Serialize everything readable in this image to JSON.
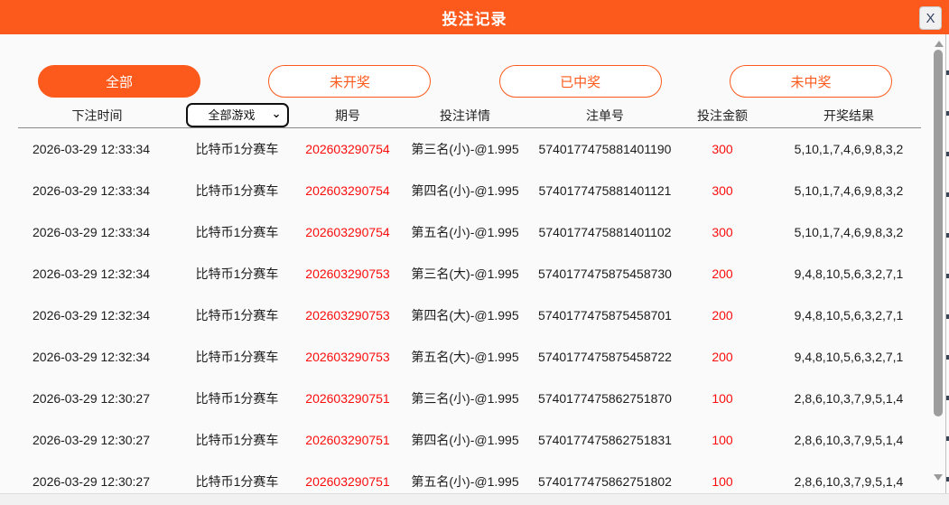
{
  "header": {
    "title": "投注记录",
    "close_label": "X"
  },
  "filters": [
    {
      "label": "全部",
      "active": true
    },
    {
      "label": "未开奖",
      "active": false
    },
    {
      "label": "已中奖",
      "active": false
    },
    {
      "label": "未中奖",
      "active": false
    }
  ],
  "table": {
    "headers": [
      "下注时间",
      "期号",
      "投注详情",
      "注单号",
      "投注金额",
      "开奖结果"
    ],
    "game_filter": {
      "selected": "全部游戏"
    },
    "rows": [
      {
        "time": "2026-03-29 12:33:34",
        "game": "比特币1分赛车",
        "period": "202603290754",
        "detail": "第三名(小)-@1.995",
        "order": "5740177475881401190",
        "amount": "300",
        "result": "5,10,1,7,4,6,9,8,3,2"
      },
      {
        "time": "2026-03-29 12:33:34",
        "game": "比特币1分赛车",
        "period": "202603290754",
        "detail": "第四名(小)-@1.995",
        "order": "5740177475881401121",
        "amount": "300",
        "result": "5,10,1,7,4,6,9,8,3,2"
      },
      {
        "time": "2026-03-29 12:33:34",
        "game": "比特币1分赛车",
        "period": "202603290754",
        "detail": "第五名(小)-@1.995",
        "order": "5740177475881401102",
        "amount": "300",
        "result": "5,10,1,7,4,6,9,8,3,2"
      },
      {
        "time": "2026-03-29 12:32:34",
        "game": "比特币1分赛车",
        "period": "202603290753",
        "detail": "第三名(大)-@1.995",
        "order": "5740177475875458730",
        "amount": "200",
        "result": "9,4,8,10,5,6,3,2,7,1"
      },
      {
        "time": "2026-03-29 12:32:34",
        "game": "比特币1分赛车",
        "period": "202603290753",
        "detail": "第四名(大)-@1.995",
        "order": "5740177475875458701",
        "amount": "200",
        "result": "9,4,8,10,5,6,3,2,7,1"
      },
      {
        "time": "2026-03-29 12:32:34",
        "game": "比特币1分赛车",
        "period": "202603290753",
        "detail": "第五名(大)-@1.995",
        "order": "5740177475875458722",
        "amount": "200",
        "result": "9,4,8,10,5,6,3,2,7,1"
      },
      {
        "time": "2026-03-29 12:30:27",
        "game": "比特币1分赛车",
        "period": "202603290751",
        "detail": "第三名(小)-@1.995",
        "order": "5740177475862751870",
        "amount": "100",
        "result": "2,8,6,10,3,7,9,5,1,4"
      },
      {
        "time": "2026-03-29 12:30:27",
        "game": "比特币1分赛车",
        "period": "202603290751",
        "detail": "第四名(小)-@1.995",
        "order": "5740177475862751831",
        "amount": "100",
        "result": "2,8,6,10,3,7,9,5,1,4"
      },
      {
        "time": "2026-03-29 12:30:27",
        "game": "比特币1分赛车",
        "period": "202603290751",
        "detail": "第五名(小)-@1.995",
        "order": "5740177475862751802",
        "amount": "100",
        "result": "2,8,6,10,3,7,9,5,1,4"
      }
    ]
  },
  "colors": {
    "accent_orange": "#fc5a1c",
    "value_red": "#fb0d0d",
    "scrollbar_gray": "#9d9d9d"
  }
}
